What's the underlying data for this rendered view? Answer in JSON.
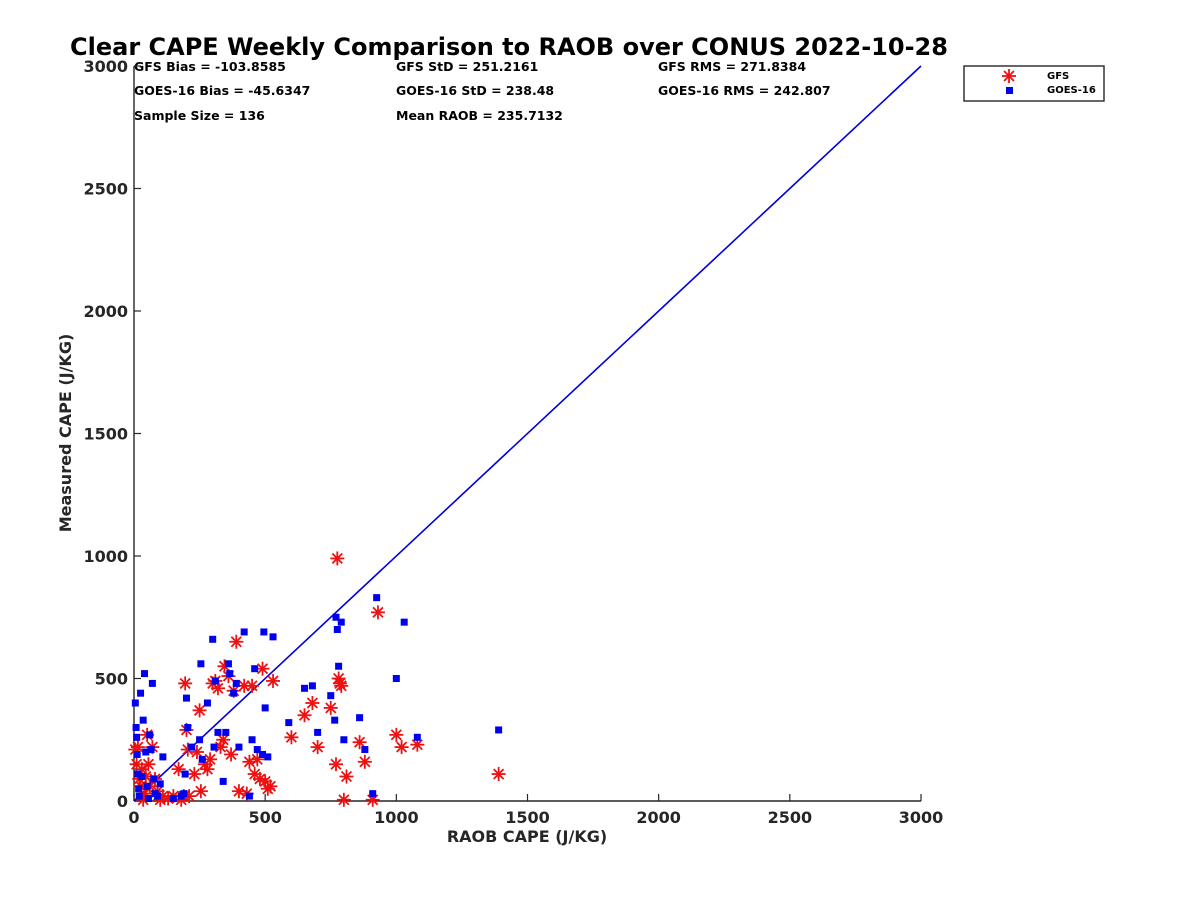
{
  "chart_data": {
    "type": "scatter",
    "title": "Clear CAPE Weekly Comparison to RAOB over CONUS 2022-10-28",
    "xlabel": "RAOB CAPE (J/KG)",
    "ylabel": "Measured CAPE (J/KG)",
    "xlim": [
      0,
      3000
    ],
    "ylim": [
      0,
      3000
    ],
    "xticks": [
      0,
      500,
      1000,
      1500,
      2000,
      2500,
      3000
    ],
    "yticks": [
      0,
      500,
      1000,
      1500,
      2000,
      2500,
      3000
    ],
    "grid": false,
    "legend_position": "top-right",
    "reference_line": {
      "x": [
        0,
        3000
      ],
      "y": [
        0,
        3000
      ],
      "color": "#0000dd"
    },
    "stats": [
      "GFS Bias = -103.8585",
      "GFS StD = 251.2161",
      "GFS RMS = 271.8384",
      "GOES-16 Bias = -45.6347",
      "GOES-16 StD = 238.48",
      "GOES-16 RMS = 242.807",
      "Sample Size = 136",
      "Mean RAOB = 235.7132"
    ],
    "series": [
      {
        "name": "GFS",
        "marker": "asterisk",
        "color": "#ee1111",
        "points": [
          [
            5,
            210
          ],
          [
            15,
            220
          ],
          [
            10,
            150
          ],
          [
            20,
            90
          ],
          [
            25,
            60
          ],
          [
            30,
            130
          ],
          [
            35,
            5
          ],
          [
            40,
            30
          ],
          [
            45,
            100
          ],
          [
            50,
            270
          ],
          [
            55,
            150
          ],
          [
            60,
            60
          ],
          [
            70,
            220
          ],
          [
            80,
            90
          ],
          [
            90,
            40
          ],
          [
            100,
            5
          ],
          [
            110,
            20
          ],
          [
            130,
            10
          ],
          [
            150,
            20
          ],
          [
            170,
            130
          ],
          [
            180,
            5
          ],
          [
            190,
            20
          ],
          [
            195,
            480
          ],
          [
            200,
            290
          ],
          [
            205,
            210
          ],
          [
            210,
            20
          ],
          [
            230,
            110
          ],
          [
            240,
            200
          ],
          [
            250,
            370
          ],
          [
            255,
            40
          ],
          [
            270,
            150
          ],
          [
            280,
            130
          ],
          [
            290,
            170
          ],
          [
            300,
            480
          ],
          [
            310,
            490
          ],
          [
            320,
            460
          ],
          [
            330,
            220
          ],
          [
            340,
            250
          ],
          [
            345,
            550
          ],
          [
            360,
            510
          ],
          [
            370,
            190
          ],
          [
            380,
            450
          ],
          [
            390,
            650
          ],
          [
            400,
            40
          ],
          [
            420,
            470
          ],
          [
            430,
            30
          ],
          [
            440,
            160
          ],
          [
            450,
            470
          ],
          [
            460,
            110
          ],
          [
            470,
            170
          ],
          [
            480,
            90
          ],
          [
            490,
            540
          ],
          [
            500,
            80
          ],
          [
            510,
            50
          ],
          [
            520,
            60
          ],
          [
            530,
            490
          ],
          [
            600,
            260
          ],
          [
            650,
            350
          ],
          [
            680,
            400
          ],
          [
            700,
            220
          ],
          [
            750,
            380
          ],
          [
            770,
            150
          ],
          [
            775,
            990
          ],
          [
            780,
            500
          ],
          [
            785,
            480
          ],
          [
            790,
            470
          ],
          [
            800,
            5
          ],
          [
            810,
            100
          ],
          [
            860,
            240
          ],
          [
            880,
            160
          ],
          [
            910,
            5
          ],
          [
            930,
            770
          ],
          [
            1000,
            270
          ],
          [
            1020,
            220
          ],
          [
            1080,
            230
          ],
          [
            1390,
            110
          ]
        ]
      },
      {
        "name": "GOES-16",
        "marker": "square",
        "color": "#0000ee",
        "points": [
          [
            5,
            400
          ],
          [
            8,
            300
          ],
          [
            10,
            260
          ],
          [
            12,
            190
          ],
          [
            15,
            110
          ],
          [
            18,
            50
          ],
          [
            20,
            20
          ],
          [
            25,
            440
          ],
          [
            30,
            100
          ],
          [
            35,
            330
          ],
          [
            40,
            520
          ],
          [
            45,
            200
          ],
          [
            50,
            60
          ],
          [
            55,
            10
          ],
          [
            60,
            270
          ],
          [
            65,
            210
          ],
          [
            70,
            480
          ],
          [
            75,
            90
          ],
          [
            80,
            30
          ],
          [
            90,
            20
          ],
          [
            100,
            70
          ],
          [
            110,
            180
          ],
          [
            150,
            10
          ],
          [
            180,
            20
          ],
          [
            190,
            30
          ],
          [
            195,
            110
          ],
          [
            200,
            420
          ],
          [
            205,
            300
          ],
          [
            220,
            220
          ],
          [
            250,
            250
          ],
          [
            255,
            560
          ],
          [
            260,
            170
          ],
          [
            280,
            400
          ],
          [
            300,
            660
          ],
          [
            305,
            220
          ],
          [
            310,
            490
          ],
          [
            320,
            280
          ],
          [
            340,
            80
          ],
          [
            350,
            280
          ],
          [
            360,
            560
          ],
          [
            365,
            520
          ],
          [
            380,
            440
          ],
          [
            390,
            480
          ],
          [
            400,
            220
          ],
          [
            420,
            690
          ],
          [
            440,
            20
          ],
          [
            450,
            250
          ],
          [
            460,
            540
          ],
          [
            470,
            210
          ],
          [
            490,
            190
          ],
          [
            495,
            690
          ],
          [
            500,
            380
          ],
          [
            510,
            180
          ],
          [
            530,
            670
          ],
          [
            590,
            320
          ],
          [
            650,
            460
          ],
          [
            680,
            470
          ],
          [
            700,
            280
          ],
          [
            750,
            430
          ],
          [
            765,
            330
          ],
          [
            770,
            750
          ],
          [
            775,
            700
          ],
          [
            780,
            550
          ],
          [
            790,
            730
          ],
          [
            800,
            250
          ],
          [
            860,
            340
          ],
          [
            880,
            210
          ],
          [
            910,
            30
          ],
          [
            925,
            830
          ],
          [
            1000,
            500
          ],
          [
            1030,
            730
          ],
          [
            1080,
            260
          ],
          [
            1390,
            290
          ]
        ]
      }
    ]
  }
}
